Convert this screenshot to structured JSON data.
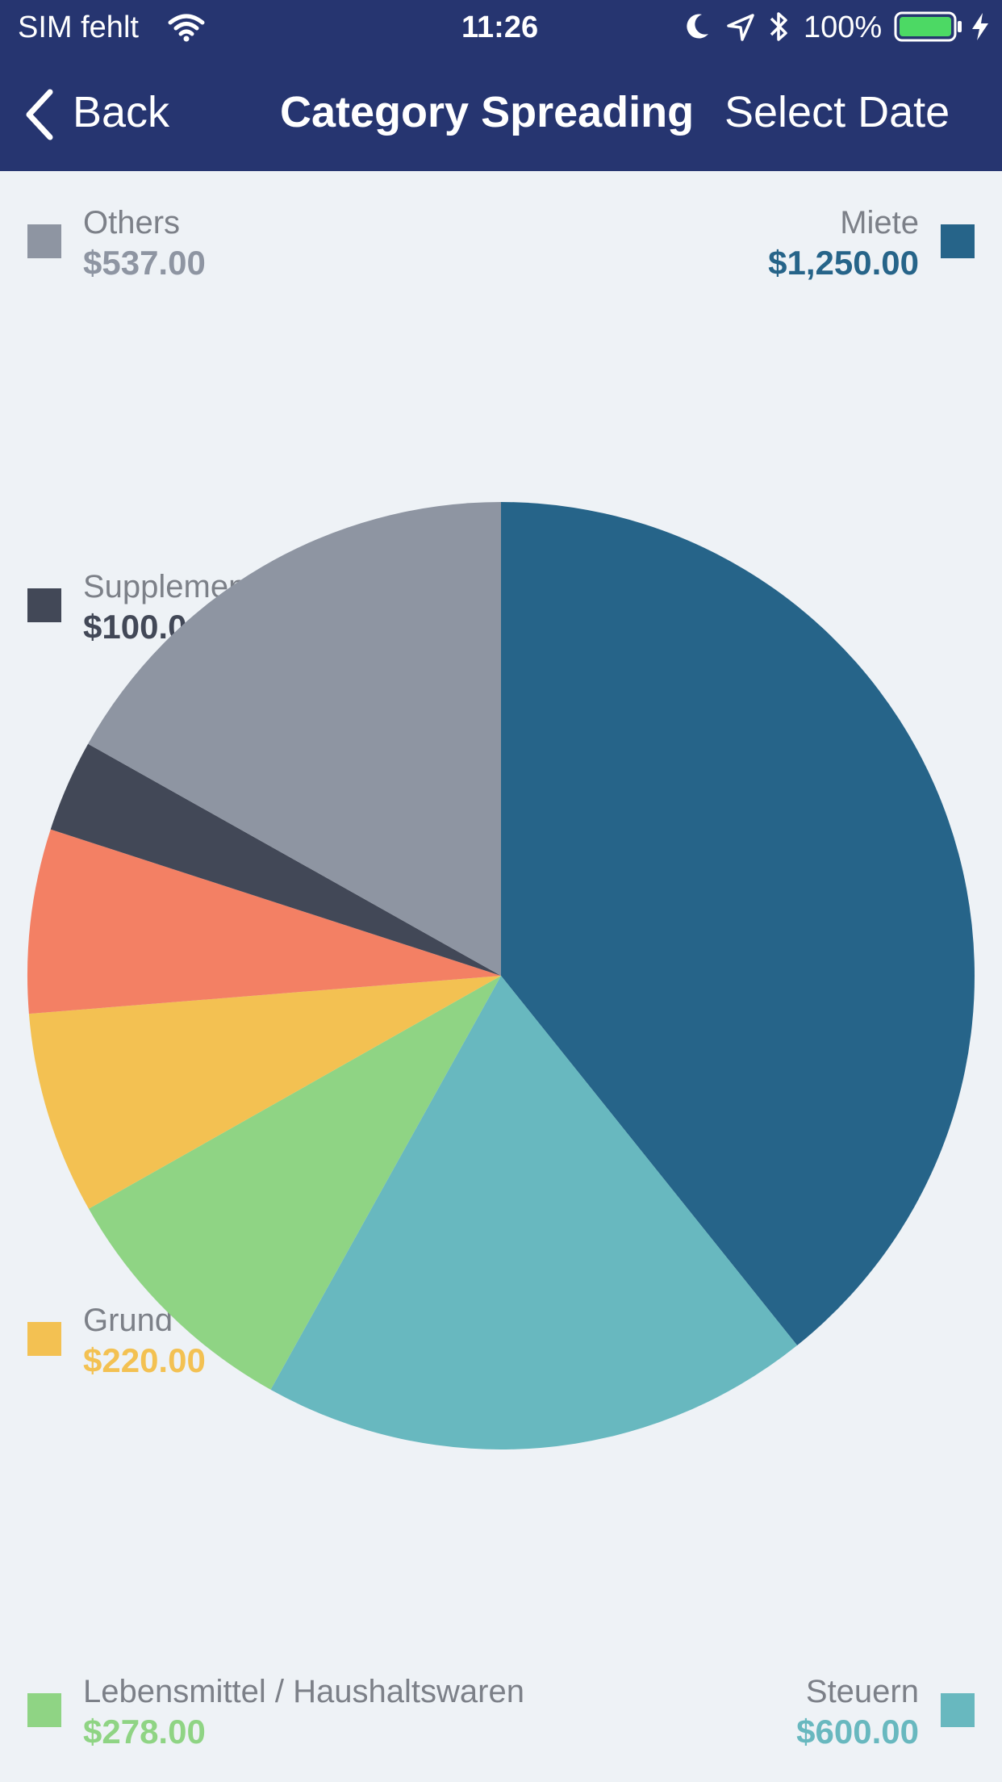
{
  "status_bar": {
    "carrier": "SIM fehlt",
    "time": "11:26",
    "battery": "100%",
    "icons": [
      "wifi-icon",
      "moon-icon",
      "location-arrow-icon",
      "bluetooth-icon",
      "battery-icon",
      "charging-bolt-icon"
    ]
  },
  "nav": {
    "back_label": "Back",
    "title": "Category Spreading",
    "select_date_label": "Select Date",
    "back_icon": "chevron-left-icon"
  },
  "legend": [
    {
      "label": "Others",
      "value": "$537.00",
      "color": "#8e95a2"
    },
    {
      "label": "Miete",
      "value": "$1,250.00",
      "color": "#266489"
    },
    {
      "label": "Supplemen",
      "value": "$100.0",
      "color": "#424857"
    },
    {
      "label": "Grund",
      "value": "$220.00",
      "color": "#f3c152"
    },
    {
      "label": "Lebensmittel / Haushaltswaren",
      "value": "$278.00",
      "color": "#8fd484"
    },
    {
      "label": "Steuern",
      "value": "$600.00",
      "color": "#68b8bf"
    }
  ],
  "chart_data": {
    "type": "pie",
    "categories": [
      "Miete",
      "Steuern",
      "Lebensmittel / Haushaltswaren",
      "Grund",
      "",
      "Supplemen",
      "Others"
    ],
    "values": [
      1250,
      600,
      278,
      220,
      200,
      100,
      537
    ],
    "colors": [
      "#266489",
      "#68b8bf",
      "#8fd484",
      "#f3c152",
      "#f38064",
      "#424857",
      "#8e95a2"
    ]
  }
}
